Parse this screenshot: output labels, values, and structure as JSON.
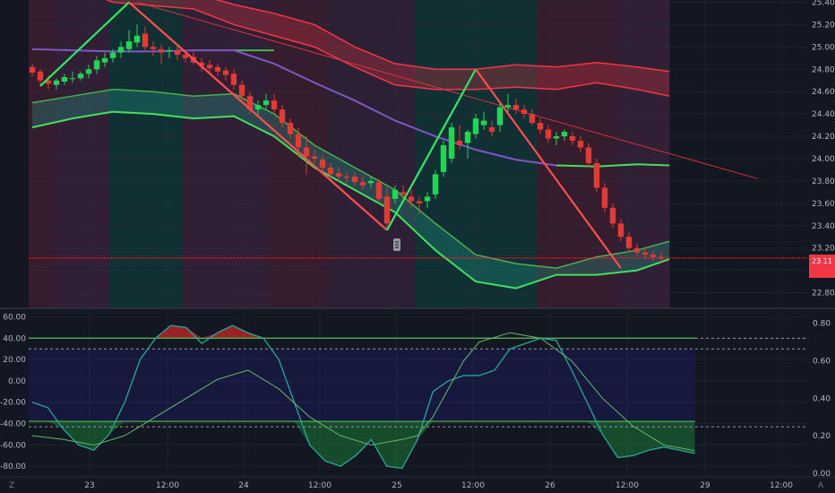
{
  "chart_data": [
    {
      "type": "candlestick",
      "title": "",
      "grid": true,
      "price_axis": {
        "ticks": [
          "25.40",
          "25.20",
          "25.00",
          "24.80",
          "24.60",
          "24.40",
          "24.20",
          "24.00",
          "23.80",
          "23.60",
          "23.40",
          "23.20",
          "23.00",
          "22.80"
        ],
        "range": [
          22.66,
          25.42
        ]
      },
      "time_axis": {
        "ticks": [
          "23",
          "12:00",
          "24",
          "12:00",
          "25",
          "12:00",
          "26",
          "12:00",
          "29",
          "12:00"
        ]
      },
      "last_price": "23.11",
      "last_price_tag_top": "23.11",
      "last_price_tag_bottom": "",
      "candles": [
        [
          24.82,
          24.85,
          24.74,
          24.77
        ],
        [
          24.78,
          24.8,
          24.66,
          24.7
        ],
        [
          24.7,
          24.74,
          24.62,
          24.67
        ],
        [
          24.66,
          24.72,
          24.62,
          24.7
        ],
        [
          24.69,
          24.76,
          24.66,
          24.73
        ],
        [
          24.72,
          24.78,
          24.68,
          24.72
        ],
        [
          24.72,
          24.78,
          24.7,
          24.76
        ],
        [
          24.76,
          24.84,
          24.72,
          24.8
        ],
        [
          24.8,
          24.92,
          24.76,
          24.88
        ],
        [
          24.86,
          24.95,
          24.82,
          24.9
        ],
        [
          24.9,
          24.98,
          24.86,
          24.95
        ],
        [
          24.95,
          25.05,
          24.9,
          25.0
        ],
        [
          24.98,
          25.15,
          24.95,
          25.05
        ],
        [
          25.04,
          25.2,
          25.0,
          25.1
        ],
        [
          25.12,
          25.18,
          24.96,
          25.0
        ],
        [
          25.0,
          25.05,
          24.92,
          24.98
        ],
        [
          24.98,
          25.02,
          24.85,
          24.95
        ],
        [
          24.96,
          25.0,
          24.9,
          24.97
        ],
        [
          24.97,
          25.02,
          24.88,
          24.93
        ],
        [
          24.93,
          24.97,
          24.86,
          24.9
        ],
        [
          24.91,
          24.96,
          24.84,
          24.86
        ],
        [
          24.86,
          24.9,
          24.78,
          24.83
        ],
        [
          24.84,
          24.88,
          24.76,
          24.81
        ],
        [
          24.82,
          24.85,
          24.74,
          24.78
        ],
        [
          24.79,
          24.82,
          24.7,
          24.75
        ],
        [
          24.76,
          24.8,
          24.62,
          24.66
        ],
        [
          24.66,
          24.7,
          24.52,
          24.56
        ],
        [
          24.56,
          24.6,
          24.4,
          24.44
        ],
        [
          24.44,
          24.52,
          24.38,
          24.48
        ],
        [
          24.48,
          24.58,
          24.44,
          24.52
        ],
        [
          24.52,
          24.58,
          24.4,
          24.44
        ],
        [
          24.44,
          24.48,
          24.28,
          24.32
        ],
        [
          24.32,
          24.36,
          24.18,
          24.22
        ],
        [
          24.22,
          24.28,
          24.02,
          24.1
        ],
        [
          24.1,
          24.2,
          23.86,
          24.02
        ],
        [
          24.02,
          24.08,
          23.96,
          24.0
        ],
        [
          23.99,
          24.03,
          23.88,
          23.92
        ],
        [
          23.92,
          23.96,
          23.82,
          23.86
        ],
        [
          23.87,
          23.92,
          23.8,
          23.84
        ],
        [
          23.84,
          23.88,
          23.78,
          23.83
        ],
        [
          23.84,
          23.88,
          23.76,
          23.79
        ],
        [
          23.79,
          23.84,
          23.72,
          23.76
        ],
        [
          23.78,
          23.84,
          23.74,
          23.8
        ],
        [
          23.79,
          23.82,
          23.6,
          23.64
        ],
        [
          23.66,
          23.74,
          23.38,
          23.42
        ],
        [
          23.64,
          23.76,
          23.6,
          23.72
        ],
        [
          23.7,
          23.76,
          23.64,
          23.68
        ],
        [
          23.66,
          23.72,
          23.56,
          23.62
        ],
        [
          23.62,
          23.66,
          23.5,
          23.6
        ],
        [
          23.62,
          23.7,
          23.56,
          23.66
        ],
        [
          23.68,
          23.9,
          23.64,
          23.86
        ],
        [
          23.88,
          24.16,
          23.84,
          24.12
        ],
        [
          24.0,
          24.32,
          23.96,
          24.28
        ],
        [
          24.16,
          24.3,
          24.08,
          24.12
        ],
        [
          24.14,
          24.26,
          24.0,
          24.24
        ],
        [
          24.22,
          24.4,
          24.18,
          24.36
        ],
        [
          24.3,
          24.42,
          24.26,
          24.34
        ],
        [
          24.28,
          24.34,
          24.2,
          24.24
        ],
        [
          24.3,
          24.5,
          24.24,
          24.46
        ],
        [
          24.46,
          24.58,
          24.4,
          24.48
        ],
        [
          24.48,
          24.54,
          24.4,
          24.44
        ],
        [
          24.44,
          24.48,
          24.36,
          24.4
        ],
        [
          24.4,
          24.44,
          24.3,
          24.32
        ],
        [
          24.32,
          24.36,
          24.22,
          24.26
        ],
        [
          24.26,
          24.3,
          24.14,
          24.18
        ],
        [
          24.18,
          24.24,
          24.12,
          24.2
        ],
        [
          24.2,
          24.26,
          24.16,
          24.24
        ],
        [
          24.2,
          24.24,
          24.12,
          24.16
        ],
        [
          24.16,
          24.2,
          24.06,
          24.1
        ],
        [
          24.1,
          24.14,
          23.92,
          23.96
        ],
        [
          23.96,
          24.0,
          23.7,
          23.74
        ],
        [
          23.74,
          23.78,
          23.52,
          23.56
        ],
        [
          23.56,
          23.6,
          23.38,
          23.42
        ],
        [
          23.42,
          23.46,
          23.26,
          23.3
        ],
        [
          23.3,
          23.34,
          23.16,
          23.2
        ],
        [
          23.2,
          23.24,
          23.12,
          23.16
        ],
        [
          23.16,
          23.2,
          23.1,
          23.14
        ],
        [
          23.14,
          23.18,
          23.08,
          23.12
        ],
        [
          23.12,
          23.16,
          23.06,
          23.11
        ]
      ],
      "ma_line": [
        [
          0,
          24.98
        ],
        [
          5,
          24.97
        ],
        [
          10,
          24.96
        ],
        [
          15,
          24.96
        ],
        [
          20,
          24.97
        ],
        [
          25,
          24.97
        ],
        [
          30,
          24.85
        ],
        [
          35,
          24.68
        ],
        [
          40,
          24.52
        ],
        [
          45,
          24.34
        ],
        [
          50,
          24.2
        ],
        [
          55,
          24.08
        ],
        [
          60,
          23.99
        ],
        [
          65,
          23.94
        ],
        [
          70,
          23.93
        ],
        [
          75,
          23.95
        ],
        [
          79,
          23.94
        ]
      ],
      "upper_band_top": [
        [
          0,
          25.8
        ],
        [
          5,
          25.7
        ],
        [
          10,
          25.55
        ],
        [
          15,
          25.52
        ],
        [
          20,
          25.48
        ],
        [
          25,
          25.38
        ],
        [
          30,
          25.3
        ],
        [
          35,
          25.2
        ],
        [
          40,
          25.0
        ],
        [
          45,
          24.85
        ],
        [
          50,
          24.8
        ],
        [
          55,
          24.8
        ],
        [
          60,
          24.84
        ],
        [
          65,
          24.82
        ],
        [
          70,
          24.86
        ],
        [
          75,
          24.82
        ],
        [
          79,
          24.78
        ]
      ],
      "upper_band_bottom": [
        [
          0,
          25.62
        ],
        [
          5,
          25.55
        ],
        [
          10,
          25.4
        ],
        [
          15,
          25.37
        ],
        [
          20,
          25.34
        ],
        [
          25,
          25.2
        ],
        [
          30,
          25.1
        ],
        [
          35,
          25.0
        ],
        [
          40,
          24.82
        ],
        [
          45,
          24.66
        ],
        [
          50,
          24.62
        ],
        [
          55,
          24.62
        ],
        [
          60,
          24.64
        ],
        [
          65,
          24.62
        ],
        [
          70,
          24.68
        ],
        [
          75,
          24.62
        ],
        [
          79,
          24.56
        ]
      ],
      "lower_band_top": [
        [
          0,
          24.5
        ],
        [
          5,
          24.56
        ],
        [
          10,
          24.62
        ],
        [
          15,
          24.6
        ],
        [
          20,
          24.56
        ],
        [
          25,
          24.58
        ],
        [
          30,
          24.4
        ],
        [
          35,
          24.12
        ],
        [
          40,
          23.92
        ],
        [
          45,
          23.72
        ],
        [
          50,
          23.42
        ],
        [
          55,
          23.14
        ],
        [
          60,
          23.06
        ],
        [
          65,
          23.02
        ],
        [
          70,
          23.12
        ],
        [
          75,
          23.18
        ],
        [
          79,
          23.26
        ]
      ],
      "lower_band_bottom": [
        [
          0,
          24.28
        ],
        [
          5,
          24.36
        ],
        [
          10,
          24.42
        ],
        [
          15,
          24.4
        ],
        [
          20,
          24.36
        ],
        [
          25,
          24.38
        ],
        [
          30,
          24.2
        ],
        [
          35,
          23.92
        ],
        [
          40,
          23.72
        ],
        [
          45,
          23.52
        ],
        [
          50,
          23.18
        ],
        [
          55,
          22.9
        ],
        [
          60,
          22.84
        ],
        [
          65,
          22.96
        ],
        [
          70,
          22.96
        ],
        [
          75,
          23.0
        ],
        [
          79,
          23.1
        ]
      ],
      "zigzag": [
        [
          1,
          24.65
        ],
        [
          12,
          25.4
        ],
        [
          44,
          23.36
        ],
        [
          55,
          24.8
        ],
        [
          73,
          23.02
        ]
      ],
      "trend_line": [
        [
          13,
          25.4
        ],
        [
          90,
          23.82
        ]
      ],
      "sessions": [
        {
          "from": 0,
          "to": 3.5,
          "color": "#a03050"
        },
        {
          "from": 3.5,
          "to": 10,
          "color": "#8a3a70"
        },
        {
          "from": 10,
          "to": 19,
          "color": "#0c7a6c"
        },
        {
          "from": 19,
          "to": 30,
          "color": "#8a3a70"
        },
        {
          "from": 30,
          "to": 37,
          "color": "#a03050"
        },
        {
          "from": 37,
          "to": 48,
          "color": "#7a3a70"
        },
        {
          "from": 48,
          "to": 63,
          "color": "#0c7a6c"
        },
        {
          "from": 63,
          "to": 73,
          "color": "#a03050"
        },
        {
          "from": 73,
          "to": 79.5,
          "color": "#8a3a70"
        }
      ]
    },
    {
      "type": "line",
      "title": "",
      "left_axis": {
        "ticks": [
          "60.00",
          "40.00",
          "20.00",
          "0.00",
          "-20.00",
          "-40.00",
          "-60.00",
          "-80.00"
        ],
        "range": [
          -90,
          68
        ]
      },
      "right_axis": {
        "ticks": [
          "0.80",
          "0.60",
          "0.40",
          "0.20",
          "0.00"
        ],
        "range": [
          -0.02,
          0.88
        ]
      },
      "levels": [
        40,
        30,
        -38,
        -43
      ],
      "oscillator_left": [
        [
          0,
          -20
        ],
        [
          2,
          -25
        ],
        [
          4,
          -45
        ],
        [
          6,
          -60
        ],
        [
          8,
          -65
        ],
        [
          10,
          -50
        ],
        [
          12,
          -20
        ],
        [
          14,
          20
        ],
        [
          16,
          40
        ],
        [
          18,
          52
        ],
        [
          20,
          50
        ],
        [
          22,
          35
        ],
        [
          24,
          45
        ],
        [
          26,
          52
        ],
        [
          28,
          45
        ],
        [
          30,
          40
        ],
        [
          32,
          20
        ],
        [
          34,
          -20
        ],
        [
          36,
          -60
        ],
        [
          38,
          -75
        ],
        [
          40,
          -80
        ],
        [
          42,
          -70
        ],
        [
          44,
          -55
        ],
        [
          46,
          -80
        ],
        [
          48,
          -82
        ],
        [
          50,
          -55
        ],
        [
          52,
          -10
        ],
        [
          54,
          0
        ],
        [
          56,
          5
        ],
        [
          58,
          5
        ],
        [
          60,
          10
        ],
        [
          62,
          30
        ],
        [
          64,
          35
        ],
        [
          66,
          40
        ],
        [
          68,
          38
        ],
        [
          70,
          10
        ],
        [
          72,
          -20
        ],
        [
          74,
          -50
        ],
        [
          76,
          -72
        ],
        [
          78,
          -70
        ],
        [
          80,
          -65
        ],
        [
          82,
          -62
        ],
        [
          84,
          -65
        ],
        [
          86,
          -68
        ]
      ],
      "oscillator_right": [
        [
          0,
          0.2
        ],
        [
          4,
          0.18
        ],
        [
          8,
          0.15
        ],
        [
          12,
          0.2
        ],
        [
          16,
          0.3
        ],
        [
          20,
          0.4
        ],
        [
          24,
          0.5
        ],
        [
          28,
          0.55
        ],
        [
          32,
          0.45
        ],
        [
          36,
          0.3
        ],
        [
          40,
          0.2
        ],
        [
          44,
          0.15
        ],
        [
          48,
          0.18
        ],
        [
          50,
          0.2
        ],
        [
          52,
          0.3
        ],
        [
          54,
          0.45
        ],
        [
          56,
          0.6
        ],
        [
          58,
          0.7
        ],
        [
          62,
          0.75
        ],
        [
          66,
          0.72
        ],
        [
          70,
          0.6
        ],
        [
          74,
          0.4
        ],
        [
          78,
          0.25
        ],
        [
          82,
          0.15
        ],
        [
          86,
          0.12
        ]
      ]
    }
  ]
}
